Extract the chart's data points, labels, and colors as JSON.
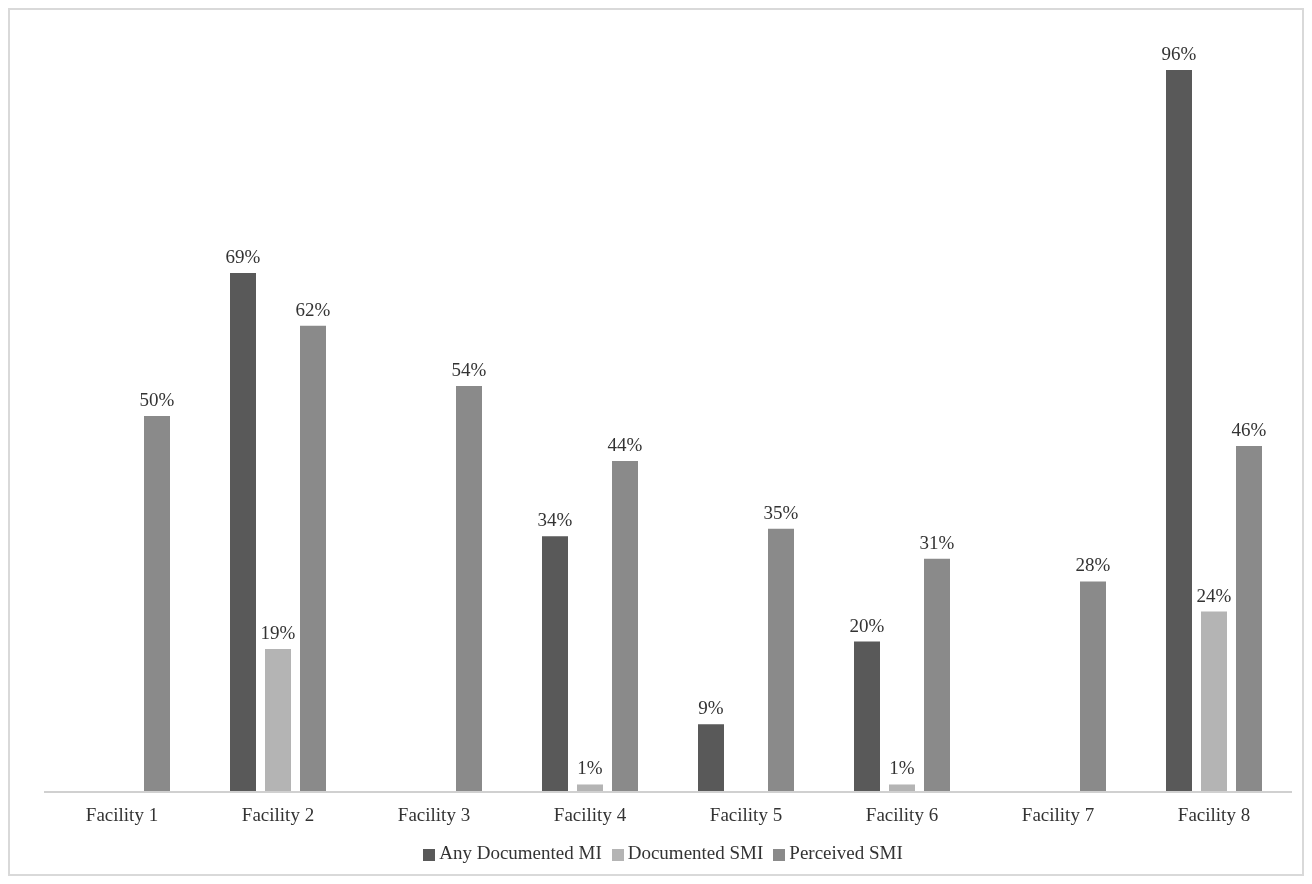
{
  "chart_data": {
    "type": "bar",
    "categories": [
      "Facility 1",
      "Facility 2",
      "Facility 3",
      "Facility 4",
      "Facility 5",
      "Facility 6",
      "Facility 7",
      "Facility 8"
    ],
    "series": [
      {
        "name": "Any Documented MI",
        "color": "#595959",
        "values": [
          null,
          69,
          null,
          34,
          9,
          20,
          null,
          96
        ],
        "value_labels": [
          null,
          "69%",
          null,
          "34%",
          "9%",
          "20%",
          null,
          "96%"
        ]
      },
      {
        "name": "Documented SMI",
        "color": "#b4b4b4",
        "values": [
          null,
          19,
          null,
          1,
          null,
          1,
          null,
          24
        ],
        "value_labels": [
          null,
          "19%",
          null,
          "1%",
          null,
          "1%",
          null,
          "24%"
        ]
      },
      {
        "name": "Perceived SMI",
        "color": "#8a8a8a",
        "values": [
          50,
          62,
          54,
          44,
          35,
          31,
          28,
          46
        ],
        "value_labels": [
          "50%",
          "62%",
          "54%",
          "44%",
          "35%",
          "31%",
          "28%",
          "46%"
        ]
      }
    ],
    "relative": false,
    "legend": "bottom",
    "grid": false
  }
}
